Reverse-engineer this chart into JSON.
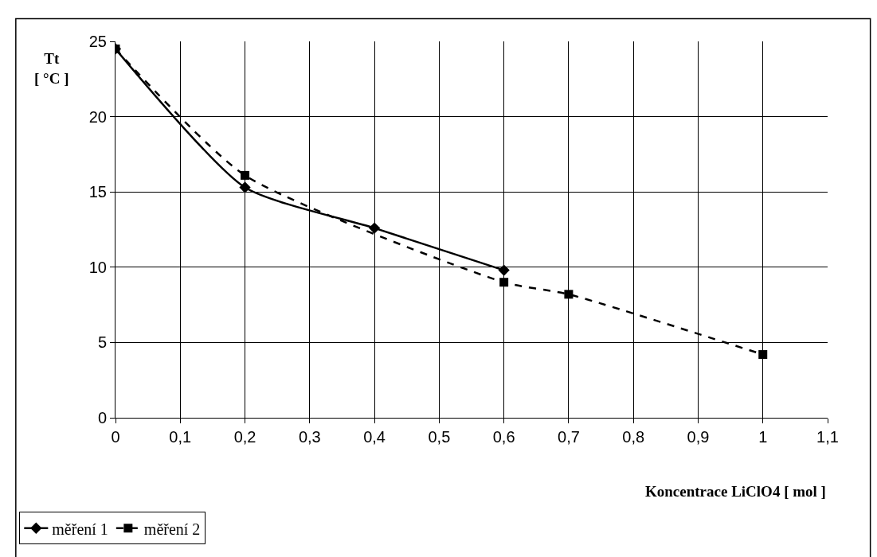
{
  "chart_data": {
    "type": "line",
    "xlabel": "Koncentrace LiClO4 [ mol ]",
    "ylabel": "Tt\n[ °C ]",
    "xlim": [
      0,
      1.1
    ],
    "xticks": [
      {
        "value": 0,
        "label": "0"
      },
      {
        "value": 0.1,
        "label": "0,1"
      },
      {
        "value": 0.2,
        "label": "0,2"
      },
      {
        "value": 0.3,
        "label": "0,3"
      },
      {
        "value": 0.4,
        "label": "0,4"
      },
      {
        "value": 0.5,
        "label": "0,5"
      },
      {
        "value": 0.6,
        "label": "0,6"
      },
      {
        "value": 0.7,
        "label": "0,7"
      },
      {
        "value": 0.8,
        "label": "0,8"
      },
      {
        "value": 0.9,
        "label": "0,9"
      },
      {
        "value": 1,
        "label": "1"
      },
      {
        "value": 1.1,
        "label": "1,1"
      }
    ],
    "ylim": [
      0,
      25
    ],
    "yticks": [
      0,
      5,
      10,
      15,
      20,
      25
    ],
    "grid": true,
    "legend": "bottom left",
    "series": [
      {
        "name": "měření 1",
        "color": "#000000",
        "marker": "diamond",
        "line_style": "solid",
        "x": [
          0,
          0.2,
          0.4,
          0.6
        ],
        "values": [
          24.5,
          15.3,
          12.6,
          9.8
        ]
      },
      {
        "name": "měření 2",
        "color": "#000000",
        "marker": "square",
        "line_style": "dashed",
        "x": [
          0,
          0.2,
          0.6,
          0.7,
          1
        ],
        "values": [
          24.5,
          16.1,
          9.0,
          8.2,
          4.2
        ]
      }
    ]
  }
}
